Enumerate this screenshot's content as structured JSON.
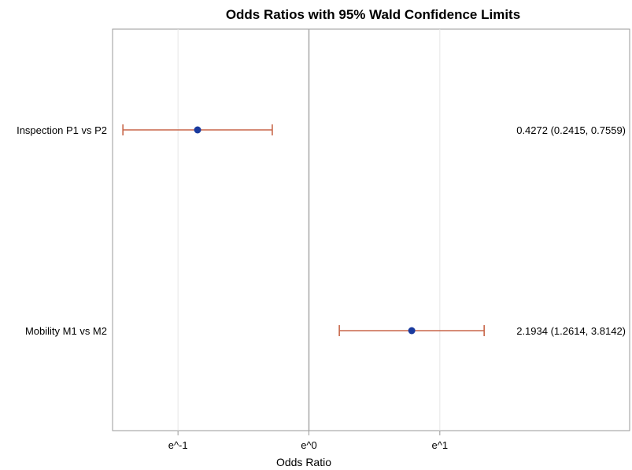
{
  "chart_data": {
    "type": "forest",
    "title": "Odds Ratios with 95% Wald Confidence Limits",
    "xlabel": "Odds Ratio",
    "x_scale": "log",
    "xlim_log": [
      -1.5,
      2.45
    ],
    "x_ticks": [
      {
        "label": "e^-1",
        "log_value": -1
      },
      {
        "label": "e^0",
        "log_value": 0
      },
      {
        "label": "e^1",
        "log_value": 1
      }
    ],
    "reference_line_log": 0,
    "grid": true,
    "rows": [
      {
        "label": "Inspection P1 vs P2",
        "estimate": 0.4272,
        "lower": 0.2415,
        "upper": 0.7559,
        "estimate_text": "0.4272 (0.2415, 0.7559)"
      },
      {
        "label": "Mobility M1 vs M2",
        "estimate": 2.1934,
        "lower": 1.2614,
        "upper": 3.8142,
        "estimate_text": "2.1934 (1.2614, 3.8142)"
      }
    ],
    "colors": {
      "marker": "#1a3a9e",
      "ci": "#c8674a",
      "axis": "#999999",
      "grid": "#e5e5e5",
      "ref": "#a8a8a8"
    }
  }
}
